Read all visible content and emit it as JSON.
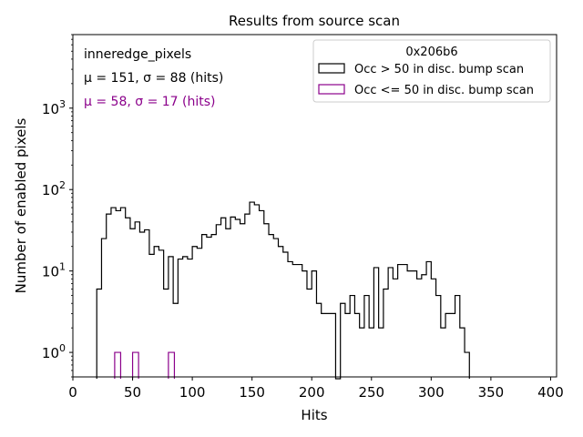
{
  "chart_data": {
    "type": "histogram",
    "title": "Results from source scan",
    "xlabel": "Hits",
    "ylabel": "Number of enabled pixels",
    "xlim": [
      0,
      405
    ],
    "ylim": [
      0.5,
      8000
    ],
    "yscale": "log",
    "grid": false,
    "xticks": [
      0,
      50,
      100,
      150,
      200,
      250,
      300,
      350,
      400
    ],
    "yticks": [
      {
        "value": 1,
        "base": "10",
        "exp": "0"
      },
      {
        "value": 10,
        "base": "10",
        "exp": "1"
      },
      {
        "value": 100,
        "base": "10",
        "exp": "2"
      },
      {
        "value": 1000,
        "base": "10",
        "exp": "3"
      }
    ],
    "bin_edges_start": 20,
    "bin_width": 4,
    "annotation": {
      "name": "inneredge_pixels",
      "stats1": "μ = 151, σ = 88 (hits)",
      "stats2": "μ = 58, σ = 17 (hits)",
      "color1": "#000000",
      "color2": "#8b008b"
    },
    "legend": {
      "placement": "top-right",
      "title": "0x206b6",
      "entries": [
        {
          "label": "Occ > 50 in disc. bump scan",
          "color": "#000000"
        },
        {
          "label": "Occ <= 50 in disc. bump scan",
          "color": "#8b008b"
        }
      ]
    },
    "series": [
      {
        "name": "Occ > 50 in disc. bump scan",
        "color": "#000000",
        "counts": [
          6,
          25,
          50,
          60,
          55,
          60,
          45,
          33,
          40,
          30,
          32,
          16,
          20,
          18,
          6,
          15,
          4,
          14,
          15,
          14,
          20,
          19,
          28,
          26,
          28,
          37,
          45,
          33,
          46,
          43,
          38,
          50,
          70,
          65,
          55,
          38,
          28,
          25,
          20,
          17,
          13,
          12,
          12,
          10,
          6,
          10,
          4,
          3,
          3,
          3,
          0,
          4,
          3,
          5,
          3,
          2,
          5,
          2,
          11,
          2,
          6,
          11,
          8,
          12,
          12,
          10,
          10,
          8,
          9,
          13,
          8,
          5,
          2,
          3,
          3,
          5,
          2,
          1
        ]
      },
      {
        "name": "Occ <= 50 in disc. bump scan",
        "color": "#8b008b",
        "bins": [
          [
            35,
            40,
            1
          ],
          [
            50,
            55,
            1
          ],
          [
            80,
            85,
            1
          ]
        ]
      }
    ]
  }
}
